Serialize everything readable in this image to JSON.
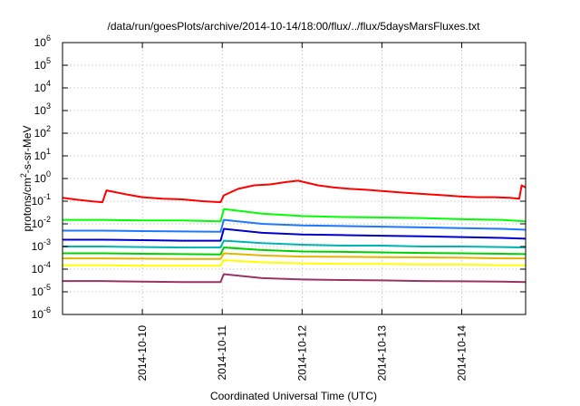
{
  "chart_data": {
    "type": "line",
    "title": "/data/run/goesPlots/archive/2014-10-14/18:00/flux/../flux/5daysMarsFluxes.txt",
    "xlabel": "Coordinated Universal Time (UTC)",
    "ylabel": {
      "prefix": "protons/cm",
      "sup": "2",
      "suffix": "-s-sr-MeV"
    },
    "x_unit": "day",
    "xlim": [
      0,
      5.8
    ],
    "x_ticks": [
      {
        "x": 1,
        "label": "2014-10-10"
      },
      {
        "x": 2,
        "label": "2014-10-11"
      },
      {
        "x": 3,
        "label": "2014-10-12"
      },
      {
        "x": 4,
        "label": "2014-10-13"
      },
      {
        "x": 5,
        "label": "2014-10-14"
      }
    ],
    "yscale": "log",
    "ylim": [
      1e-06,
      1000000.0
    ],
    "y_ticks": [
      {
        "exp": -6,
        "base": "10",
        "sup": "-6"
      },
      {
        "exp": -5,
        "base": "10",
        "sup": "-5"
      },
      {
        "exp": -4,
        "base": "10",
        "sup": "-4"
      },
      {
        "exp": -3,
        "base": "10",
        "sup": "-3"
      },
      {
        "exp": -2,
        "base": "10",
        "sup": "-2"
      },
      {
        "exp": -1,
        "base": "10",
        "sup": "-1"
      },
      {
        "exp": 0,
        "base": "10",
        "sup": "0"
      },
      {
        "exp": 1,
        "base": "10",
        "sup": "1"
      },
      {
        "exp": 2,
        "base": "10",
        "sup": "2"
      },
      {
        "exp": 3,
        "base": "10",
        "sup": "3"
      },
      {
        "exp": 4,
        "base": "10",
        "sup": "4"
      },
      {
        "exp": 5,
        "base": "10",
        "sup": "5"
      },
      {
        "exp": 6,
        "base": "10",
        "sup": "6"
      }
    ],
    "grid": true,
    "series": [
      {
        "color": "#ff0000",
        "x": [
          0,
          0.15,
          0.35,
          0.5,
          0.55,
          0.8,
          1.0,
          1.25,
          1.5,
          1.75,
          1.98,
          2.02,
          2.2,
          2.4,
          2.6,
          2.8,
          2.95,
          3.2,
          3.4,
          3.6,
          3.8,
          4.0,
          4.2,
          4.4,
          4.6,
          4.8,
          5.0,
          5.2,
          5.4,
          5.6,
          5.72,
          5.75,
          5.8
        ],
        "y": [
          0.14,
          0.12,
          0.1,
          0.09,
          0.3,
          0.2,
          0.15,
          0.13,
          0.12,
          0.1,
          0.09,
          0.18,
          0.35,
          0.5,
          0.55,
          0.7,
          0.8,
          0.5,
          0.4,
          0.35,
          0.32,
          0.28,
          0.25,
          0.22,
          0.2,
          0.18,
          0.16,
          0.15,
          0.15,
          0.14,
          0.13,
          0.5,
          0.4
        ]
      },
      {
        "color": "#00ff00",
        "x": [
          0,
          0.5,
          1.0,
          1.5,
          1.98,
          2.02,
          2.5,
          3.0,
          3.5,
          4.0,
          4.5,
          5.0,
          5.5,
          5.8
        ],
        "y": [
          0.015,
          0.015,
          0.014,
          0.014,
          0.013,
          0.045,
          0.028,
          0.022,
          0.02,
          0.019,
          0.018,
          0.016,
          0.015,
          0.013
        ]
      },
      {
        "color": "#1e78ff",
        "x": [
          0,
          0.5,
          1.0,
          1.5,
          1.98,
          2.02,
          2.5,
          3.0,
          3.5,
          4.0,
          4.5,
          5.0,
          5.5,
          5.8
        ],
        "y": [
          0.005,
          0.005,
          0.0048,
          0.0046,
          0.0045,
          0.015,
          0.01,
          0.0085,
          0.008,
          0.0075,
          0.007,
          0.0065,
          0.006,
          0.0055
        ]
      },
      {
        "color": "#0000cc",
        "x": [
          0,
          0.5,
          1.0,
          1.5,
          1.98,
          2.02,
          2.5,
          3.0,
          3.5,
          4.0,
          4.5,
          5.0,
          5.5,
          5.8
        ],
        "y": [
          0.002,
          0.002,
          0.0019,
          0.0018,
          0.0018,
          0.006,
          0.004,
          0.0034,
          0.0032,
          0.003,
          0.0028,
          0.0026,
          0.0024,
          0.0022
        ]
      },
      {
        "color": "#00b4b4",
        "x": [
          0,
          0.5,
          1.0,
          1.5,
          1.98,
          2.02,
          2.5,
          3.0,
          3.5,
          4.0,
          4.5,
          5.0,
          5.5,
          5.8
        ],
        "y": [
          0.001,
          0.001,
          0.00095,
          0.0009,
          0.0009,
          0.0018,
          0.0014,
          0.0012,
          0.0011,
          0.0011,
          0.001,
          0.001,
          0.00095,
          0.0009
        ]
      },
      {
        "color": "#00d200",
        "x": [
          0,
          0.5,
          1.0,
          1.5,
          1.98,
          2.02,
          2.5,
          3.0,
          3.5,
          4.0,
          4.5,
          5.0,
          5.5,
          5.8
        ],
        "y": [
          0.0005,
          0.0005,
          0.00048,
          0.00046,
          0.00045,
          0.0009,
          0.0007,
          0.0006,
          0.00058,
          0.00055,
          0.00052,
          0.0005,
          0.00048,
          0.00046
        ]
      },
      {
        "color": "#e6b400",
        "x": [
          0,
          0.5,
          1.0,
          1.5,
          1.98,
          2.02,
          2.5,
          3.0,
          3.5,
          4.0,
          4.5,
          5.0,
          5.5,
          5.8
        ],
        "y": [
          0.0003,
          0.0003,
          0.00029,
          0.00028,
          0.00028,
          0.0005,
          0.0004,
          0.00036,
          0.00035,
          0.00034,
          0.00033,
          0.00032,
          0.0003,
          0.0003
        ]
      },
      {
        "color": "#ffff00",
        "x": [
          0,
          0.5,
          1.0,
          1.5,
          1.98,
          2.02,
          2.5,
          3.0,
          3.5,
          4.0,
          4.5,
          5.0,
          5.5,
          5.8
        ],
        "y": [
          0.00015,
          0.00015,
          0.00014,
          0.00014,
          0.00014,
          0.00025,
          0.0002,
          0.00018,
          0.00017,
          0.00017,
          0.00016,
          0.00016,
          0.00015,
          0.00015
        ]
      },
      {
        "color": "#993366",
        "x": [
          0,
          0.5,
          1.0,
          1.5,
          1.98,
          2.02,
          2.5,
          3.0,
          3.5,
          4.0,
          4.5,
          5.0,
          5.5,
          5.8
        ],
        "y": [
          3e-05,
          3e-05,
          2.8e-05,
          2.7e-05,
          2.7e-05,
          6e-05,
          4e-05,
          3.5e-05,
          3.3e-05,
          3.2e-05,
          3e-05,
          2.9e-05,
          2.8e-05,
          2.7e-05
        ]
      }
    ]
  }
}
